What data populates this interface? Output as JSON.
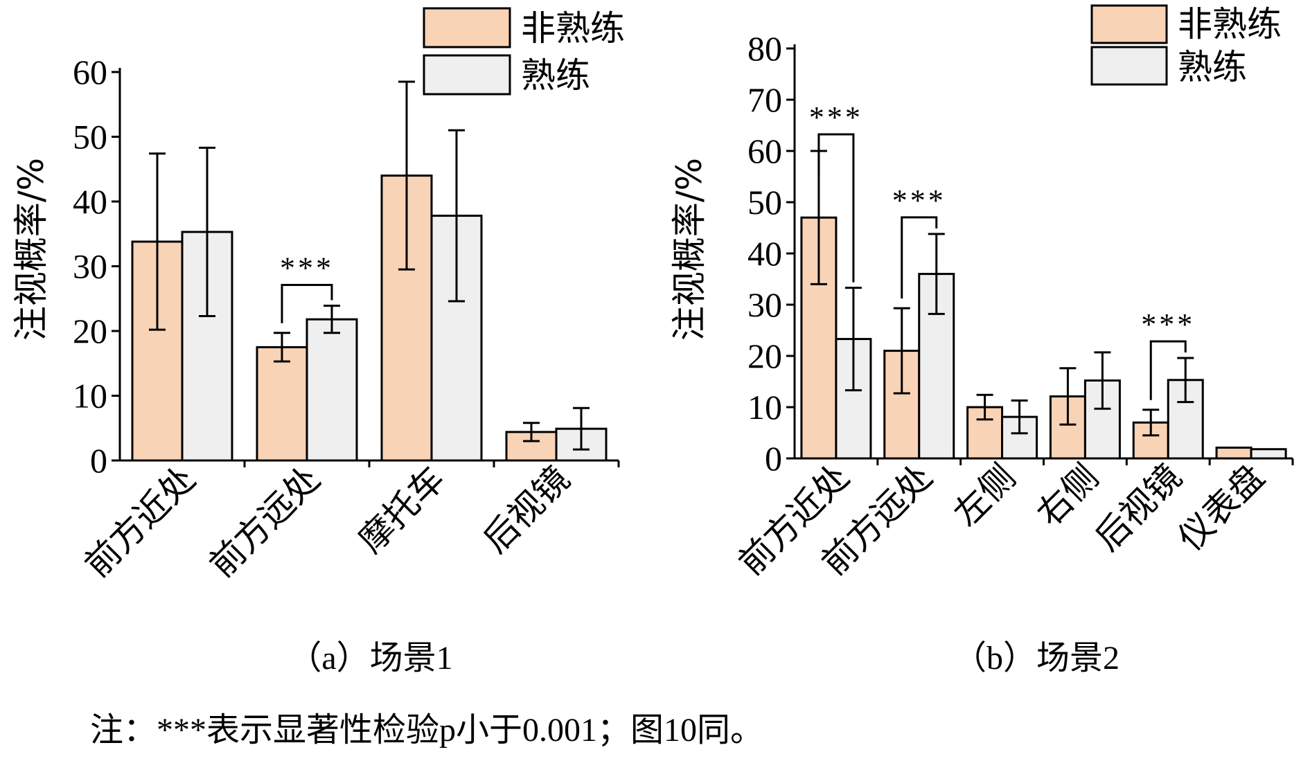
{
  "chart_data": [
    {
      "type": "bar",
      "caption": "（a）场景1",
      "ylabel": "注视概率/%",
      "ylim": [
        0,
        60
      ],
      "yticks": [
        0,
        10,
        20,
        30,
        40,
        50,
        60
      ],
      "categories": [
        "前方近处",
        "前方远处",
        "摩托车",
        "后视镜"
      ],
      "legend_position": "top-right",
      "series": [
        {
          "name": "非熟练",
          "color": "#f9d3b6",
          "values": [
            33.8,
            17.5,
            44.0,
            4.4
          ],
          "error": [
            13.6,
            2.2,
            14.5,
            1.4
          ]
        },
        {
          "name": "熟练",
          "color": "#efefef",
          "values": [
            35.3,
            21.8,
            37.8,
            4.9
          ],
          "error": [
            13.0,
            2.1,
            13.2,
            3.2
          ]
        }
      ],
      "significance": [
        {
          "category_index": 1,
          "label": "***"
        }
      ]
    },
    {
      "type": "bar",
      "caption": "（b）场景2",
      "ylabel": "注视概率/%",
      "ylim": [
        0,
        80
      ],
      "yticks": [
        0,
        10,
        20,
        30,
        40,
        50,
        60,
        70,
        80
      ],
      "categories": [
        "前方近处",
        "前方远处",
        "左侧",
        "右侧",
        "后视镜",
        "仪表盘"
      ],
      "legend_position": "top-right",
      "series": [
        {
          "name": "非熟练",
          "color": "#f9d3b6",
          "values": [
            47.0,
            21.0,
            10.0,
            12.1,
            7.0,
            2.1
          ],
          "error": [
            13.0,
            8.3,
            2.4,
            5.5,
            2.5,
            0
          ]
        },
        {
          "name": "熟练",
          "color": "#efefef",
          "values": [
            23.3,
            36.0,
            8.1,
            15.2,
            15.3,
            1.8
          ],
          "error": [
            10.0,
            7.8,
            3.2,
            5.5,
            4.3,
            0
          ]
        }
      ],
      "significance": [
        {
          "category_index": 0,
          "label": "***"
        },
        {
          "category_index": 1,
          "label": "***"
        },
        {
          "category_index": 4,
          "label": "***"
        }
      ]
    }
  ],
  "note": "注：***表示显著性检验p小于0.001；图10同。"
}
